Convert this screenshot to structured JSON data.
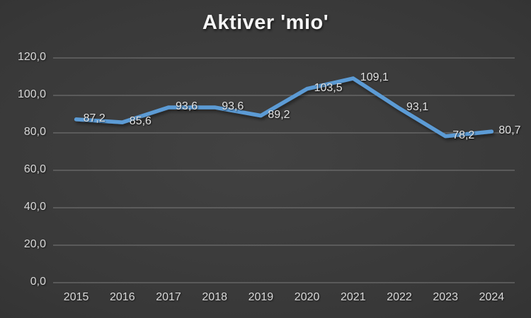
{
  "chart_data": {
    "type": "line",
    "title": "Aktiver 'mio'",
    "categories": [
      "2015",
      "2016",
      "2017",
      "2018",
      "2019",
      "2020",
      "2021",
      "2022",
      "2023",
      "2024"
    ],
    "values": [
      87.2,
      85.6,
      93.6,
      93.6,
      89.2,
      103.5,
      109.1,
      93.1,
      78.2,
      80.7
    ],
    "data_labels": [
      "87,2",
      "85,6",
      "93,6",
      "93,6",
      "89,2",
      "103,5",
      "109,1",
      "93,1",
      "78,2",
      "80,7"
    ],
    "y_ticks": [
      "0,0",
      "20,0",
      "40,0",
      "60,0",
      "80,0",
      "100,0",
      "120,0"
    ],
    "ylim": [
      0,
      120
    ],
    "y_step": 20,
    "grid": true,
    "legend": "none",
    "data_label_position": "right",
    "line_color": "#5B9BD5",
    "gridline_color": "#7a7a7a",
    "text_color": "#d9d9d9",
    "background_center": "#424242",
    "background_edge": "#262626"
  }
}
